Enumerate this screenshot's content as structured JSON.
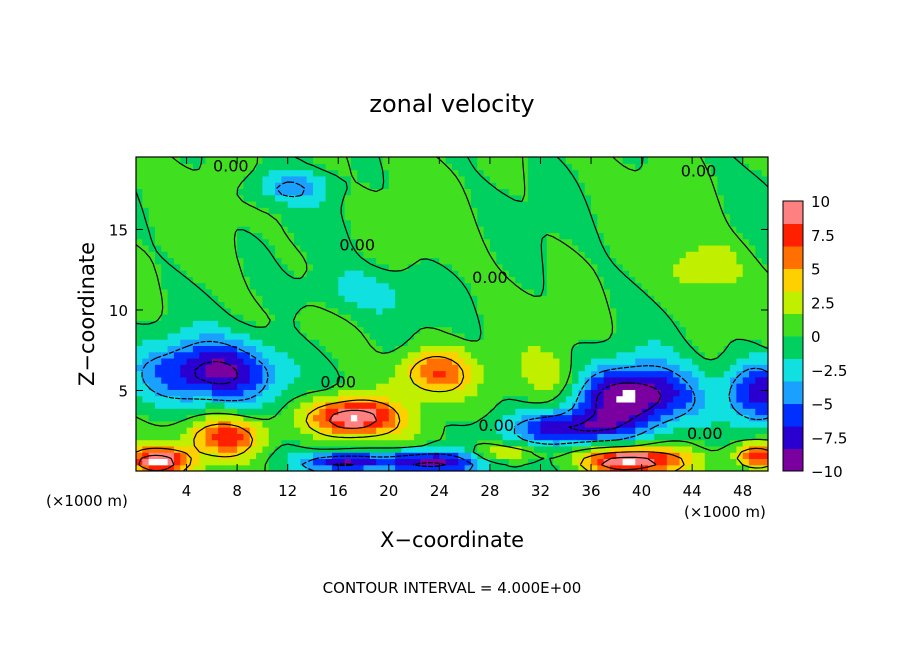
{
  "chart_data": {
    "type": "heatmap",
    "title": "zonal velocity",
    "xlabel": "X−coordinate",
    "ylabel": "Z−coordinate",
    "x_unit_left": "(×1000 m)",
    "x_unit_right": "(×1000 m)",
    "caption": "CONTOUR INTERVAL = 4.000E+00",
    "xlim": [
      0,
      50
    ],
    "ylim": [
      0,
      19.5
    ],
    "x_ticks": [
      "4",
      "8",
      "12",
      "16",
      "20",
      "24",
      "28",
      "32",
      "36",
      "40",
      "44",
      "48"
    ],
    "y_ticks": [
      "5",
      "10",
      "15"
    ],
    "colorbar": {
      "range": [
        -10,
        10
      ],
      "ticks": [
        "10",
        "7.5",
        "5",
        "2.5",
        "0",
        "−2.5",
        "−5",
        "−7.5",
        "−10"
      ],
      "colors": [
        "#7a00a0",
        "#2a00d0",
        "#0030ff",
        "#1aa0ff",
        "#10e0e0",
        "#00d060",
        "#40e020",
        "#c0f000",
        "#ffd000",
        "#ff7000",
        "#ff2000",
        "#ff8080"
      ]
    },
    "contour_labels": [
      {
        "text": "0.00",
        "x": 7.5,
        "z": 18.9
      },
      {
        "text": "0.00",
        "x": 44.5,
        "z": 18.6
      },
      {
        "text": "0.00",
        "x": 17.5,
        "z": 14.0
      },
      {
        "text": "0.00",
        "x": 28.0,
        "z": 12.0
      },
      {
        "text": "0.00",
        "x": 16.0,
        "z": 5.5
      },
      {
        "text": "0.00",
        "x": 28.5,
        "z": 2.8
      },
      {
        "text": "0.00",
        "x": 45.0,
        "z": 2.3
      }
    ],
    "field_features": [
      {
        "kind": "neg",
        "x": 6.0,
        "z": 6.0,
        "rx": 6.0,
        "rz": 2.0,
        "amp": -8.5
      },
      {
        "kind": "neg",
        "x": 39.0,
        "z": 4.5,
        "rx": 5.0,
        "rz": 2.0,
        "amp": -10.5
      },
      {
        "kind": "neg",
        "x": 34.0,
        "z": 2.5,
        "rx": 5.0,
        "rz": 1.0,
        "amp": -7.0
      },
      {
        "kind": "neg",
        "x": 49.0,
        "z": 4.8,
        "rx": 2.5,
        "rz": 2.0,
        "amp": -8.0
      },
      {
        "kind": "neg",
        "x": 16.0,
        "z": 0.4,
        "rx": 3.0,
        "rz": 0.6,
        "amp": -8.0
      },
      {
        "kind": "neg",
        "x": 23.0,
        "z": 0.4,
        "rx": 4.0,
        "rz": 0.8,
        "amp": -10.0
      },
      {
        "kind": "neg",
        "x": 12.0,
        "z": 17.5,
        "rx": 3.0,
        "rz": 1.0,
        "amp": -4.0
      },
      {
        "kind": "neg",
        "x": 18.0,
        "z": 11.0,
        "rx": 5.0,
        "rz": 1.5,
        "amp": -2.5
      },
      {
        "kind": "pos",
        "x": 17.0,
        "z": 3.2,
        "rx": 3.5,
        "rz": 1.2,
        "amp": 10.5
      },
      {
        "kind": "pos",
        "x": 23.5,
        "z": 6.0,
        "rx": 3.0,
        "rz": 1.5,
        "amp": 7.0
      },
      {
        "kind": "pos",
        "x": 7.0,
        "z": 2.0,
        "rx": 3.0,
        "rz": 1.2,
        "amp": 7.0
      },
      {
        "kind": "pos",
        "x": 1.5,
        "z": 0.5,
        "rx": 2.5,
        "rz": 0.8,
        "amp": 10.0
      },
      {
        "kind": "pos",
        "x": 39.0,
        "z": 0.5,
        "rx": 4.0,
        "rz": 0.8,
        "amp": 10.0
      },
      {
        "kind": "pos",
        "x": 49.0,
        "z": 0.8,
        "rx": 2.0,
        "rz": 0.8,
        "amp": 8.0
      },
      {
        "kind": "pos",
        "x": 33.0,
        "z": 5.5,
        "rx": 3.0,
        "rz": 1.5,
        "amp": 3.0
      },
      {
        "kind": "pos",
        "x": 45.0,
        "z": 12.5,
        "rx": 2.5,
        "rz": 1.5,
        "amp": 3.5
      },
      {
        "kind": "pos",
        "x": 29.0,
        "z": 1.0,
        "rx": 3.0,
        "rz": 0.5,
        "amp": 3.5
      }
    ]
  }
}
